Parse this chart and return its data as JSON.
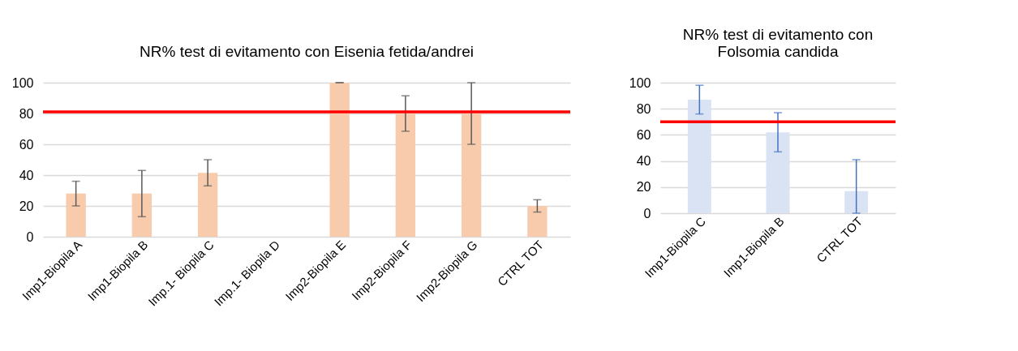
{
  "chart_data": [
    {
      "type": "bar",
      "title": "NR% test di evitamento con Eisenia fetida/andrei",
      "categories": [
        "Imp1-Biopila A",
        "Imp1-Biopila B",
        "Imp.1- Biopila C",
        "Imp.1- Biopila D",
        "Imp2-Biopila E",
        "Imp2-Biopila F",
        "Imp2-Biopila G",
        "CTRL TOT"
      ],
      "values": [
        28,
        28,
        41.5,
        0,
        100,
        80,
        80,
        20
      ],
      "errors": [
        8,
        15,
        8.5,
        null,
        0,
        11.5,
        20,
        4
      ],
      "color": "#f8cbad",
      "ylim": [
        0,
        100
      ],
      "yticks": [
        0,
        20,
        40,
        60,
        80,
        100
      ],
      "grid": "y",
      "ref_lines": [
        {
          "axis": "y",
          "value": 81,
          "color": "#ff0000"
        }
      ]
    },
    {
      "type": "bar",
      "title": "NR% test di evitamento con Folsomia candida",
      "categories": [
        "Imp1-Biopila C",
        "Imp1-Biopila B",
        "CTRL TOT"
      ],
      "values": [
        87,
        62,
        17
      ],
      "errors": [
        11,
        15,
        [
          0,
          41
        ]
      ],
      "color": "#dae3f3",
      "ylim": [
        0,
        100
      ],
      "yticks": [
        0,
        20,
        40,
        60,
        80,
        100
      ],
      "grid": "y",
      "ref_lines": [
        {
          "axis": "y",
          "value": 70,
          "color": "#ff0000"
        }
      ]
    }
  ]
}
